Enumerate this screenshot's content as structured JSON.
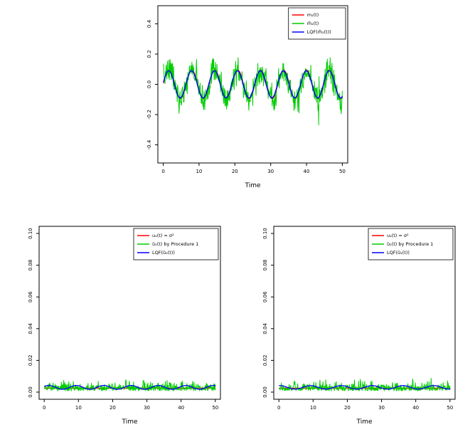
{
  "figure": {
    "background": "#ffffff"
  },
  "chart_data": [
    {
      "id": "mean-function",
      "type": "line",
      "title": "",
      "xlabel": "Time",
      "ylabel": "",
      "xlim": [
        -1.5,
        51.5
      ],
      "ylim": [
        -0.52,
        0.52
      ],
      "grid": false,
      "legend_position": "top-right",
      "xticks": [
        {
          "v": 0,
          "label": "0"
        },
        {
          "v": 10,
          "label": "10"
        },
        {
          "v": 20,
          "label": "20"
        },
        {
          "v": 30,
          "label": "30"
        },
        {
          "v": 40,
          "label": "40"
        },
        {
          "v": 50,
          "label": "50"
        }
      ],
      "yticks": [
        {
          "v": -0.4,
          "label": "-0.4"
        },
        {
          "v": -0.2,
          "label": "-0.2"
        },
        {
          "v": 0,
          "label": "0.0"
        },
        {
          "v": 0.2,
          "label": "0.2"
        },
        {
          "v": 0.4,
          "label": "0.4"
        }
      ],
      "legend": [
        {
          "label": "m₁(t)",
          "color": "#ff0000"
        },
        {
          "label": "m̂₁(t)",
          "color": "#00cc00"
        },
        {
          "label": "LQF(m̂₁(t))",
          "color": "#0000ff"
        }
      ],
      "series": [
        {
          "name": "m1-true-mean",
          "color": "#ff0000",
          "width": 1.3,
          "model": {
            "kind": "sine",
            "x0": 0.1,
            "x1": 50,
            "points": 300,
            "mean": 0,
            "amplitude": 0.095,
            "period": 6.4,
            "phase": 0,
            "noise_sd": 0,
            "seed": 11
          }
        },
        {
          "name": "m1-hat-estimate",
          "color": "#00cc00",
          "width": 1,
          "model": {
            "kind": "sine",
            "x0": 0.1,
            "x1": 50,
            "points": 500,
            "mean": 0,
            "amplitude": 0.1,
            "period": 6.4,
            "phase": 0,
            "noise_sd": 0.045,
            "seed": 7
          }
        },
        {
          "name": "lqf-of-m1-hat",
          "color": "#0000ff",
          "width": 1.4,
          "model": {
            "kind": "sine",
            "x0": 0.1,
            "x1": 50,
            "points": 300,
            "mean": 0,
            "amplitude": 0.09,
            "period": 6.4,
            "phase": 0.08,
            "noise_sd": 0,
            "seed": 12
          }
        }
      ]
    },
    {
      "id": "variance-left",
      "type": "line",
      "title": "",
      "xlabel": "Time",
      "ylabel": "",
      "xlim": [
        -1.5,
        51.5
      ],
      "ylim": [
        -0.0045,
        0.1045
      ],
      "grid": false,
      "legend_position": "top-right",
      "xticks": [
        {
          "v": 0,
          "label": "0"
        },
        {
          "v": 10,
          "label": "10"
        },
        {
          "v": 20,
          "label": "20"
        },
        {
          "v": 30,
          "label": "30"
        },
        {
          "v": 40,
          "label": "40"
        },
        {
          "v": 50,
          "label": "50"
        }
      ],
      "yticks": [
        {
          "v": 0,
          "label": "0.00"
        },
        {
          "v": 0.02,
          "label": "0.02"
        },
        {
          "v": 0.04,
          "label": "0.04"
        },
        {
          "v": 0.06,
          "label": "0.06"
        },
        {
          "v": 0.08,
          "label": "0.08"
        },
        {
          "v": 0.1,
          "label": "0.10"
        }
      ],
      "legend": [
        {
          "label": "u₁(t) = σ²",
          "color": "#ff0000"
        },
        {
          "label": "û₁(t) by Procedure 1",
          "color": "#00cc00"
        },
        {
          "label": "LQF(û₁(t))",
          "color": "#0000ff"
        }
      ],
      "series": [
        {
          "name": "u1-true-sigma-squared",
          "color": "#ff0000",
          "width": 1.3,
          "model": {
            "kind": "constant",
            "x0": 0.1,
            "x1": 50,
            "points": 2,
            "mean": 0.0025,
            "seed": 1
          }
        },
        {
          "name": "u1-hat-procedure-1",
          "color": "#00cc00",
          "width": 1,
          "model": {
            "kind": "halfnormal",
            "x0": 0.1,
            "x1": 50,
            "points": 500,
            "base": 0.0008,
            "scale": 0.0026,
            "seed": 21
          }
        },
        {
          "name": "lqf-of-u1-hat",
          "color": "#0000ff",
          "width": 1.3,
          "model": {
            "kind": "sine",
            "x0": 0.1,
            "x1": 50,
            "points": 300,
            "mean": 0.003,
            "amplitude": 0.0012,
            "period": 8,
            "phase": 0.5,
            "noise_sd": 0,
            "seed": 22
          }
        }
      ]
    },
    {
      "id": "variance-right",
      "type": "line",
      "title": "",
      "xlabel": "Time",
      "ylabel": "",
      "xlim": [
        -1.5,
        51.5
      ],
      "ylim": [
        -0.0045,
        0.1045
      ],
      "grid": false,
      "legend_position": "top-right",
      "xticks": [
        {
          "v": 0,
          "label": "0"
        },
        {
          "v": 10,
          "label": "10"
        },
        {
          "v": 20,
          "label": "20"
        },
        {
          "v": 30,
          "label": "30"
        },
        {
          "v": 40,
          "label": "40"
        },
        {
          "v": 50,
          "label": "50"
        }
      ],
      "yticks": [
        {
          "v": 0,
          "label": "0.00"
        },
        {
          "v": 0.02,
          "label": "0.02"
        },
        {
          "v": 0.04,
          "label": "0.04"
        },
        {
          "v": 0.06,
          "label": "0.06"
        },
        {
          "v": 0.08,
          "label": "0.08"
        },
        {
          "v": 0.1,
          "label": "0.10"
        }
      ],
      "legend": [
        {
          "label": "u₁(t) = σ²",
          "color": "#ff0000"
        },
        {
          "label": "û₁(t) by Procedure 1",
          "color": "#00cc00"
        },
        {
          "label": "LQF(û₁(t))",
          "color": "#0000ff"
        }
      ],
      "series": [
        {
          "name": "u1-true-sigma-squared",
          "color": "#ff0000",
          "width": 1.3,
          "model": {
            "kind": "constant",
            "x0": 0.1,
            "x1": 50,
            "points": 2,
            "mean": 0.0025,
            "seed": 2
          }
        },
        {
          "name": "u1-hat-procedure-1",
          "color": "#00cc00",
          "width": 1,
          "model": {
            "kind": "halfnormal",
            "x0": 0.1,
            "x1": 50,
            "points": 500,
            "base": 0.0008,
            "scale": 0.0024,
            "seed": 31
          }
        },
        {
          "name": "lqf-of-u1-hat",
          "color": "#0000ff",
          "width": 1.3,
          "model": {
            "kind": "sine",
            "x0": 0.1,
            "x1": 50,
            "points": 300,
            "mean": 0.003,
            "amplitude": 0.0011,
            "period": 9,
            "phase": 1.4,
            "noise_sd": 0,
            "seed": 32
          }
        }
      ]
    }
  ]
}
